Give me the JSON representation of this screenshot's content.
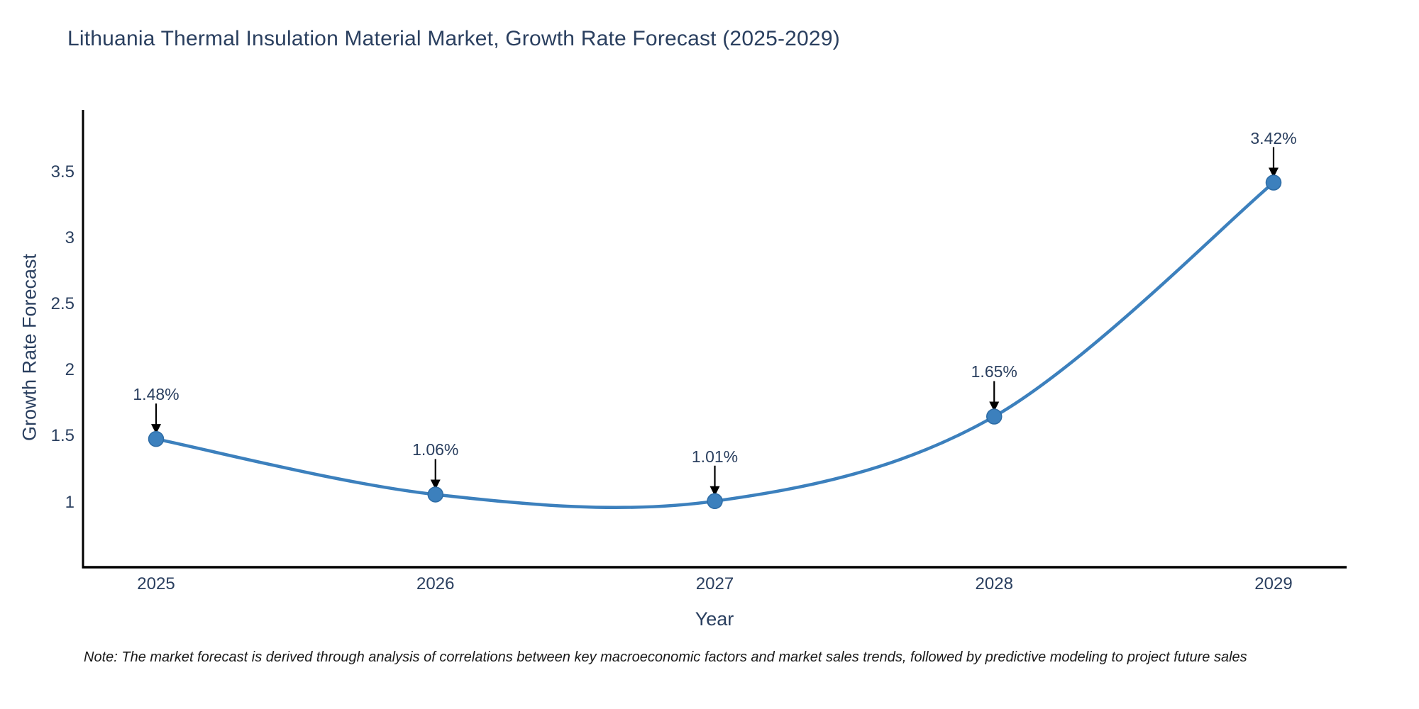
{
  "figure": {
    "note": "Note: The market forecast is derived through analysis of correlations between key macroeconomic factors and market sales trends, followed by predictive modeling to project future sales"
  },
  "chart_data": {
    "type": "line",
    "title": "Lithuania Thermal Insulation Material Market, Growth Rate Forecast (2025-2029)",
    "xlabel": "Year",
    "ylabel": "Growth Rate Forecast",
    "x": [
      2025,
      2026,
      2027,
      2028,
      2029
    ],
    "xticks": [
      "2025",
      "2026",
      "2027",
      "2028",
      "2029"
    ],
    "series": [
      {
        "name": "Growth Rate Forecast",
        "values": [
          1.48,
          1.06,
          1.01,
          1.65,
          3.42
        ]
      }
    ],
    "point_labels": [
      "1.48%",
      "1.06%",
      "1.01%",
      "1.65%",
      "3.42%"
    ],
    "yticks": [
      1,
      1.5,
      2,
      2.5,
      3,
      3.5
    ],
    "ylim": [
      0.51,
      3.97
    ],
    "grid": false,
    "smooth": true,
    "legend": "none",
    "line_color": "#3c80bd",
    "marker_color": "#3c80bd",
    "marker_edge_color": "#2e6ca5",
    "axis_color": "#000000",
    "text_color": "#2a3f5f",
    "annotation_arrow_color": "#000000"
  }
}
